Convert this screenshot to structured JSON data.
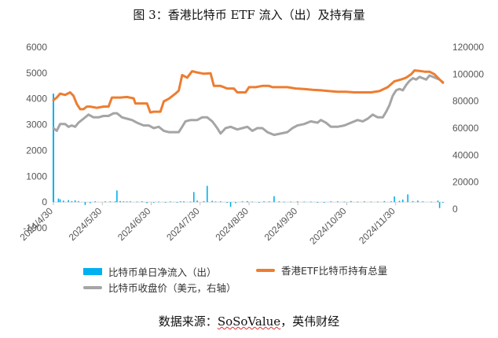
{
  "title": "图 3：香港比特币 ETF 流入（出）及持有量",
  "source": {
    "prefix": "数据来源：",
    "brand": "SoSoValue",
    "suffix": "，英伟财经"
  },
  "colors": {
    "bar": "#00b0f0",
    "holdings": "#ed7d31",
    "price": "#a5a5a5",
    "axis": "#d9d9d9"
  },
  "chart_data": {
    "type": "bar+line",
    "legend": [
      {
        "name": "比特币单日净流入（出）",
        "kind": "bar",
        "color": "#00b0f0"
      },
      {
        "name": "香港ETF比特币持有总量",
        "kind": "line",
        "color": "#ed7d31"
      },
      {
        "name": "比特币收盘价（美元，右轴）",
        "kind": "line",
        "color": "#a5a5a5"
      }
    ],
    "x_ticks": [
      "2024/4/30",
      "2024/5/30",
      "2024/6/30",
      "2024/7/30",
      "2024/8/30",
      "2024/9/30",
      "2024/10/30",
      "2024/11/30"
    ],
    "x_range": [
      0,
      234
    ],
    "y_left": {
      "ticks": [
        "-1000",
        "0",
        "1000",
        "2000",
        "3000",
        "4000",
        "5000",
        "6000"
      ],
      "range": [
        -1000,
        6000
      ]
    },
    "y_right": {
      "ticks": [
        "0",
        "20000",
        "40000",
        "60000",
        "80000",
        "100000",
        "120000"
      ],
      "range": [
        -14000,
        120000
      ]
    },
    "flows": [
      [
        0,
        4200
      ],
      [
        3,
        140
      ],
      [
        4,
        110
      ],
      [
        6,
        60
      ],
      [
        9,
        80
      ],
      [
        11,
        40
      ],
      [
        13,
        70
      ],
      [
        15,
        40
      ],
      [
        19,
        -110
      ],
      [
        22,
        -40
      ],
      [
        25,
        30
      ],
      [
        31,
        30
      ],
      [
        34,
        30
      ],
      [
        37,
        30
      ],
      [
        38,
        450
      ],
      [
        40,
        40
      ],
      [
        42,
        30
      ],
      [
        44,
        25
      ],
      [
        46,
        30
      ],
      [
        50,
        20
      ],
      [
        53,
        30
      ],
      [
        56,
        -40
      ],
      [
        60,
        -20
      ],
      [
        63,
        20
      ],
      [
        67,
        -20
      ],
      [
        70,
        25
      ],
      [
        74,
        -20
      ],
      [
        76,
        30
      ],
      [
        78,
        30
      ],
      [
        82,
        20
      ],
      [
        84,
        390
      ],
      [
        86,
        60
      ],
      [
        90,
        40
      ],
      [
        92,
        630
      ],
      [
        95,
        50
      ],
      [
        97,
        25
      ],
      [
        100,
        30
      ],
      [
        104,
        -30
      ],
      [
        106,
        -180
      ],
      [
        109,
        -40
      ],
      [
        113,
        30
      ],
      [
        116,
        40
      ],
      [
        119,
        20
      ],
      [
        123,
        -20
      ],
      [
        126,
        30
      ],
      [
        129,
        30
      ],
      [
        132,
        230
      ],
      [
        135,
        30
      ],
      [
        138,
        20
      ],
      [
        142,
        20
      ],
      [
        146,
        30
      ],
      [
        150,
        20
      ],
      [
        154,
        20
      ],
      [
        158,
        -25
      ],
      [
        162,
        -20
      ],
      [
        166,
        30
      ],
      [
        170,
        30
      ],
      [
        174,
        20
      ],
      [
        178,
        40
      ],
      [
        182,
        20
      ],
      [
        186,
        30
      ],
      [
        190,
        20
      ],
      [
        194,
        20
      ],
      [
        198,
        40
      ],
      [
        202,
        30
      ],
      [
        204,
        220
      ],
      [
        207,
        50
      ],
      [
        209,
        100
      ],
      [
        212,
        300
      ],
      [
        215,
        40
      ],
      [
        218,
        60
      ],
      [
        221,
        30
      ],
      [
        226,
        20
      ],
      [
        230,
        60
      ],
      [
        231,
        -230
      ],
      [
        233,
        -20
      ]
    ],
    "holdings": [
      [
        0,
        3950
      ],
      [
        2,
        4050
      ],
      [
        4,
        4200
      ],
      [
        7,
        4150
      ],
      [
        10,
        4250
      ],
      [
        12,
        4120
      ],
      [
        14,
        3800
      ],
      [
        16,
        3600
      ],
      [
        18,
        3600
      ],
      [
        20,
        3700
      ],
      [
        22,
        3700
      ],
      [
        26,
        3650
      ],
      [
        30,
        3700
      ],
      [
        33,
        3700
      ],
      [
        35,
        4050
      ],
      [
        40,
        4050
      ],
      [
        44,
        4070
      ],
      [
        48,
        4020
      ],
      [
        49,
        3820
      ],
      [
        56,
        3820
      ],
      [
        58,
        3470
      ],
      [
        60,
        3500
      ],
      [
        64,
        3500
      ],
      [
        66,
        3900
      ],
      [
        69,
        4000
      ],
      [
        73,
        4200
      ],
      [
        75,
        4320
      ],
      [
        77,
        4920
      ],
      [
        80,
        4820
      ],
      [
        83,
        5070
      ],
      [
        86,
        5020
      ],
      [
        90,
        4970
      ],
      [
        94,
        4990
      ],
      [
        96,
        4500
      ],
      [
        100,
        4500
      ],
      [
        104,
        4400
      ],
      [
        108,
        4400
      ],
      [
        110,
        4250
      ],
      [
        115,
        4250
      ],
      [
        117,
        4450
      ],
      [
        121,
        4450
      ],
      [
        125,
        4500
      ],
      [
        129,
        4500
      ],
      [
        131,
        4450
      ],
      [
        135,
        4450
      ],
      [
        140,
        4450
      ],
      [
        145,
        4400
      ],
      [
        150,
        4380
      ],
      [
        155,
        4350
      ],
      [
        160,
        4330
      ],
      [
        165,
        4300
      ],
      [
        170,
        4270
      ],
      [
        175,
        4270
      ],
      [
        180,
        4250
      ],
      [
        185,
        4250
      ],
      [
        190,
        4250
      ],
      [
        195,
        4300
      ],
      [
        200,
        4450
      ],
      [
        204,
        4680
      ],
      [
        208,
        4750
      ],
      [
        211,
        4820
      ],
      [
        214,
        4950
      ],
      [
        216,
        5100
      ],
      [
        219,
        5080
      ],
      [
        222,
        5050
      ],
      [
        225,
        5050
      ],
      [
        228,
        4950
      ],
      [
        231,
        4750
      ],
      [
        233,
        4620
      ]
    ],
    "price": [
      [
        0,
        60000
      ],
      [
        2,
        58000
      ],
      [
        4,
        63000
      ],
      [
        7,
        63000
      ],
      [
        9,
        61000
      ],
      [
        11,
        62000
      ],
      [
        13,
        61000
      ],
      [
        15,
        64000
      ],
      [
        18,
        67000
      ],
      [
        21,
        70000
      ],
      [
        24,
        68000
      ],
      [
        27,
        68000
      ],
      [
        30,
        69000
      ],
      [
        33,
        69000
      ],
      [
        36,
        71000
      ],
      [
        38,
        71000
      ],
      [
        41,
        68000
      ],
      [
        44,
        67000
      ],
      [
        47,
        66000
      ],
      [
        50,
        64000
      ],
      [
        54,
        62000
      ],
      [
        57,
        62000
      ],
      [
        60,
        60000
      ],
      [
        63,
        61000
      ],
      [
        66,
        58000
      ],
      [
        69,
        57000
      ],
      [
        72,
        57000
      ],
      [
        75,
        57000
      ],
      [
        77,
        61000
      ],
      [
        79,
        65000
      ],
      [
        82,
        66000
      ],
      [
        86,
        66000
      ],
      [
        89,
        68000
      ],
      [
        92,
        68000
      ],
      [
        95,
        65000
      ],
      [
        98,
        60000
      ],
      [
        100,
        56000
      ],
      [
        103,
        60000
      ],
      [
        106,
        61000
      ],
      [
        110,
        59000
      ],
      [
        113,
        60000
      ],
      [
        116,
        61000
      ],
      [
        119,
        58000
      ],
      [
        122,
        60000
      ],
      [
        125,
        60000
      ],
      [
        128,
        57000
      ],
      [
        132,
        55000
      ],
      [
        136,
        56000
      ],
      [
        140,
        57000
      ],
      [
        143,
        60000
      ],
      [
        146,
        62000
      ],
      [
        150,
        63000
      ],
      [
        154,
        65000
      ],
      [
        158,
        64000
      ],
      [
        160,
        66000
      ],
      [
        163,
        64000
      ],
      [
        166,
        61000
      ],
      [
        170,
        61000
      ],
      [
        174,
        62000
      ],
      [
        178,
        64000
      ],
      [
        182,
        66000
      ],
      [
        185,
        65000
      ],
      [
        188,
        67000
      ],
      [
        191,
        70000
      ],
      [
        194,
        68000
      ],
      [
        197,
        68000
      ],
      [
        199,
        72000
      ],
      [
        201,
        77000
      ],
      [
        203,
        84000
      ],
      [
        205,
        88000
      ],
      [
        207,
        89000
      ],
      [
        209,
        88000
      ],
      [
        211,
        92000
      ],
      [
        213,
        95000
      ],
      [
        215,
        97000
      ],
      [
        217,
        96000
      ],
      [
        219,
        98000
      ],
      [
        221,
        97000
      ],
      [
        223,
        96000
      ],
      [
        225,
        99000
      ],
      [
        227,
        98000
      ],
      [
        229,
        97000
      ],
      [
        231,
        96000
      ],
      [
        233,
        94000
      ]
    ]
  }
}
